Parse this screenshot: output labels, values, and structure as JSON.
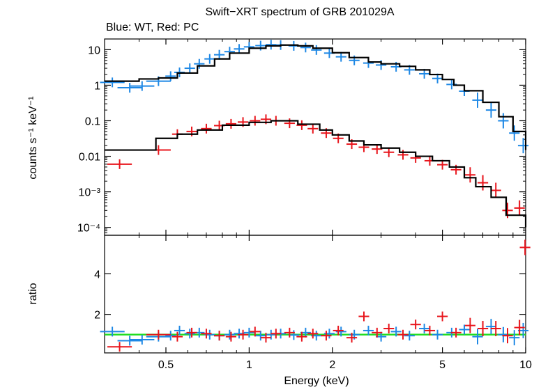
{
  "chart_data": {
    "type": "scatter",
    "title": "Swift−XRT spectrum of GRB 201029A",
    "subtitle": "Blue: WT, Red: PC",
    "xlabel": "Energy (keV)",
    "x_scale": "log",
    "xlim": [
      0.3,
      10
    ],
    "x_ticks": [
      "0.5",
      "1",
      "2",
      "5",
      "10"
    ],
    "colors": {
      "wt": "#1e88e5",
      "pc": "#e8141b",
      "model": "#000000",
      "unity": "#22dd22"
    },
    "panels": [
      {
        "name": "spectrum",
        "ylabel": "counts s⁻¹ keV⁻¹",
        "y_scale": "log",
        "ylim": [
          6e-05,
          20
        ],
        "y_ticks": [
          "10",
          "1",
          "0.1",
          "0.01",
          "10⁻³",
          "10⁻⁴"
        ],
        "series": [
          {
            "name": "WT",
            "x": [
              0.32,
              0.37,
              0.41,
              0.47,
              0.52,
              0.56,
              0.61,
              0.66,
              0.72,
              0.78,
              0.85,
              0.92,
              1.0,
              1.1,
              1.2,
              1.3,
              1.45,
              1.6,
              1.75,
              1.95,
              2.15,
              2.4,
              2.7,
              3.0,
              3.4,
              3.8,
              4.3,
              4.8,
              5.4,
              6.0,
              6.7,
              7.5,
              8.3,
              9.1,
              9.8
            ],
            "y": [
              1.2,
              0.85,
              0.95,
              1.3,
              1.8,
              2.3,
              3.0,
              4.0,
              5.5,
              7.2,
              8.8,
              10.5,
              12.0,
              13.0,
              13.8,
              13.5,
              12.8,
              11.5,
              9.8,
              8.0,
              6.3,
              5.0,
              4.2,
              3.7,
              3.3,
              2.7,
              2.1,
              1.55,
              1.05,
              0.68,
              0.38,
              0.2,
              0.1,
              0.045,
              0.02
            ]
          },
          {
            "name": "PC",
            "x": [
              0.34,
              0.47,
              0.55,
              0.62,
              0.7,
              0.78,
              0.86,
              0.95,
              1.05,
              1.15,
              1.25,
              1.4,
              1.55,
              1.7,
              1.9,
              2.1,
              2.35,
              2.6,
              2.9,
              3.2,
              3.6,
              4.0,
              4.5,
              5.0,
              5.6,
              6.3,
              7.0,
              7.8,
              8.6,
              9.5
            ],
            "y": [
              0.006,
              0.015,
              0.042,
              0.05,
              0.06,
              0.073,
              0.082,
              0.092,
              0.1,
              0.11,
              0.1,
              0.085,
              0.075,
              0.06,
              0.045,
              0.032,
              0.022,
              0.018,
              0.016,
              0.013,
              0.011,
              0.009,
              0.0075,
              0.0058,
              0.0042,
              0.003,
              0.0018,
              0.0011,
              0.0003,
              0.00035
            ]
          }
        ],
        "models": [
          {
            "name": "WT model",
            "x": [
              0.3,
              0.36,
              0.4,
              0.47,
              0.55,
              0.65,
              0.75,
              0.85,
              1.0,
              1.15,
              1.3,
              1.5,
              1.7,
              2.0,
              2.3,
              2.7,
              3.0,
              3.5,
              4.0,
              4.5,
              5.0,
              5.5,
              6.0,
              7.0,
              8.0,
              9.0,
              10.0
            ],
            "y": [
              1.3,
              1.3,
              1.5,
              1.6,
              2.2,
              3.5,
              5.5,
              8.0,
              11.0,
              12.8,
              13.5,
              12.8,
              11.0,
              8.2,
              6.0,
              4.5,
              4.0,
              3.4,
              2.7,
              2.0,
              1.45,
              1.0,
              0.7,
              0.33,
              0.13,
              0.05,
              0.015
            ]
          },
          {
            "name": "PC model",
            "x": [
              0.3,
              0.43,
              0.46,
              0.55,
              0.65,
              0.8,
              1.0,
              1.2,
              1.5,
              1.8,
              2.0,
              2.3,
              2.6,
              3.0,
              3.5,
              4.0,
              4.6,
              5.3,
              6.0,
              6.6,
              7.5,
              8.5,
              10.0
            ],
            "y": [
              0.015,
              0.015,
              0.032,
              0.042,
              0.055,
              0.075,
              0.09,
              0.1,
              0.08,
              0.055,
              0.04,
              0.027,
              0.021,
              0.017,
              0.013,
              0.01,
              0.0075,
              0.005,
              0.0025,
              0.0014,
              0.0007,
              0.00022,
              0.0001
            ]
          }
        ]
      },
      {
        "name": "ratio",
        "ylabel": "ratio",
        "y_scale": "linear",
        "ylim": [
          0.1,
          5.9
        ],
        "y_ticks": [
          "2",
          "4"
        ],
        "unity_line": 1,
        "series": [
          {
            "name": "WT",
            "x": [
              0.32,
              0.37,
              0.41,
              0.47,
              0.52,
              0.56,
              0.61,
              0.66,
              0.72,
              0.78,
              0.85,
              0.92,
              1.0,
              1.1,
              1.2,
              1.3,
              1.45,
              1.6,
              1.75,
              1.95,
              2.15,
              2.4,
              2.7,
              3.0,
              3.4,
              3.8,
              4.3,
              4.8,
              5.4,
              6.0,
              6.7,
              7.5,
              8.3,
              9.1,
              9.8
            ],
            "y": [
              1.15,
              0.7,
              0.75,
              0.9,
              0.95,
              1.2,
              1.05,
              1.1,
              1.0,
              0.95,
              1.0,
              1.05,
              1.1,
              0.95,
              1.0,
              1.05,
              0.98,
              1.1,
              0.95,
              1.05,
              1.15,
              1.0,
              1.2,
              0.9,
              1.15,
              0.95,
              1.3,
              1.0,
              1.1,
              1.25,
              0.9,
              1.4,
              1.0,
              0.85,
              1.2
            ]
          },
          {
            "name": "PC",
            "x": [
              0.34,
              0.47,
              0.55,
              0.62,
              0.7,
              0.78,
              0.86,
              0.95,
              1.05,
              1.15,
              1.25,
              1.4,
              1.55,
              1.7,
              1.9,
              2.1,
              2.35,
              2.6,
              2.9,
              3.2,
              3.6,
              4.0,
              4.5,
              5.0,
              5.6,
              6.3,
              7.0,
              7.8,
              8.6,
              9.5,
              9.95
            ],
            "y": [
              0.4,
              1.0,
              0.9,
              1.1,
              1.05,
              0.95,
              0.9,
              1.0,
              1.15,
              0.85,
              1.05,
              1.1,
              0.9,
              1.05,
              0.95,
              1.2,
              0.85,
              1.9,
              1.1,
              1.3,
              1.0,
              1.5,
              1.2,
              1.9,
              1.1,
              1.45,
              1.3,
              1.3,
              0.95,
              1.35,
              5.3
            ]
          }
        ]
      }
    ]
  }
}
